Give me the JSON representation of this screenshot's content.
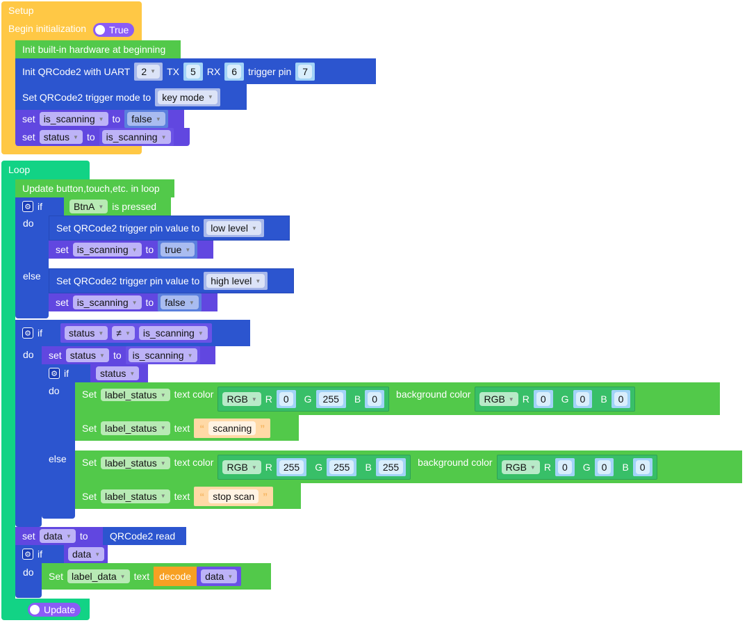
{
  "setup": {
    "title": "Setup",
    "begin_label": "Begin initialization",
    "begin_toggle": "True",
    "init_hw": "Init built-in hardware at beginning",
    "init_qr": {
      "label": "Init QRCode2 with UART",
      "uart": "2",
      "tx_label": "TX",
      "tx": "5",
      "rx_label": "RX",
      "rx": "6",
      "trig_label": "trigger pin",
      "trig": "7"
    },
    "trigger_mode": {
      "label": "Set QRCode2 trigger mode to",
      "value": "key mode"
    },
    "set1": {
      "set": "set",
      "var": "is_scanning",
      "to": "to",
      "value": "false"
    },
    "set2": {
      "set": "set",
      "var": "status",
      "to": "to",
      "value": "is_scanning"
    }
  },
  "loop": {
    "title": "Loop",
    "update_hw": "Update button,touch,etc. in loop",
    "if1": {
      "if": "if",
      "do": "do",
      "else": "else",
      "button": "BtnA",
      "cond": "is pressed",
      "do_pin": {
        "label": "Set QRCode2 trigger pin value to",
        "value": "low level"
      },
      "do_set": {
        "set": "set",
        "var": "is_scanning",
        "to": "to",
        "value": "true"
      },
      "else_pin": {
        "label": "Set QRCode2 trigger pin value to",
        "value": "high level"
      },
      "else_set": {
        "set": "set",
        "var": "is_scanning",
        "to": "to",
        "value": "false"
      }
    },
    "if2": {
      "if": "if",
      "do": "do",
      "left": "status",
      "op": "≠",
      "right": "is_scanning",
      "set": {
        "set": "set",
        "var": "status",
        "to": "to",
        "value": "is_scanning"
      },
      "inner": {
        "if": "if",
        "do": "do",
        "else": "else",
        "cond": "status",
        "do_color": {
          "set": "Set",
          "label": "label_status",
          "text_color": "text color",
          "rgb": "RGB",
          "r": "0",
          "g": "255",
          "b": "0",
          "bg_label": "background color",
          "bg_rgb": "RGB",
          "bg_r": "0",
          "bg_g": "0",
          "bg_b": "0"
        },
        "do_text": {
          "set": "Set",
          "label": "label_status",
          "text": "text",
          "value": "scanning"
        },
        "else_color": {
          "set": "Set",
          "label": "label_status",
          "text_color": "text color",
          "rgb": "RGB",
          "r": "255",
          "g": "255",
          "b": "255",
          "bg_label": "background color",
          "bg_rgb": "RGB",
          "bg_r": "0",
          "bg_g": "0",
          "bg_b": "0"
        },
        "else_text": {
          "set": "Set",
          "label": "label_status",
          "text": "text",
          "value": "stop scan"
        }
      }
    },
    "set_data": {
      "set": "set",
      "var": "data",
      "to": "to",
      "value": "QRCode2 read"
    },
    "if3": {
      "if": "if",
      "do": "do",
      "cond": "data",
      "set_text": {
        "set": "Set",
        "label": "label_data",
        "text": "text",
        "decode": "decode",
        "value": "data"
      }
    },
    "update_toggle": "Update"
  },
  "labels": {
    "R": "R",
    "G": "G",
    "B": "B"
  }
}
